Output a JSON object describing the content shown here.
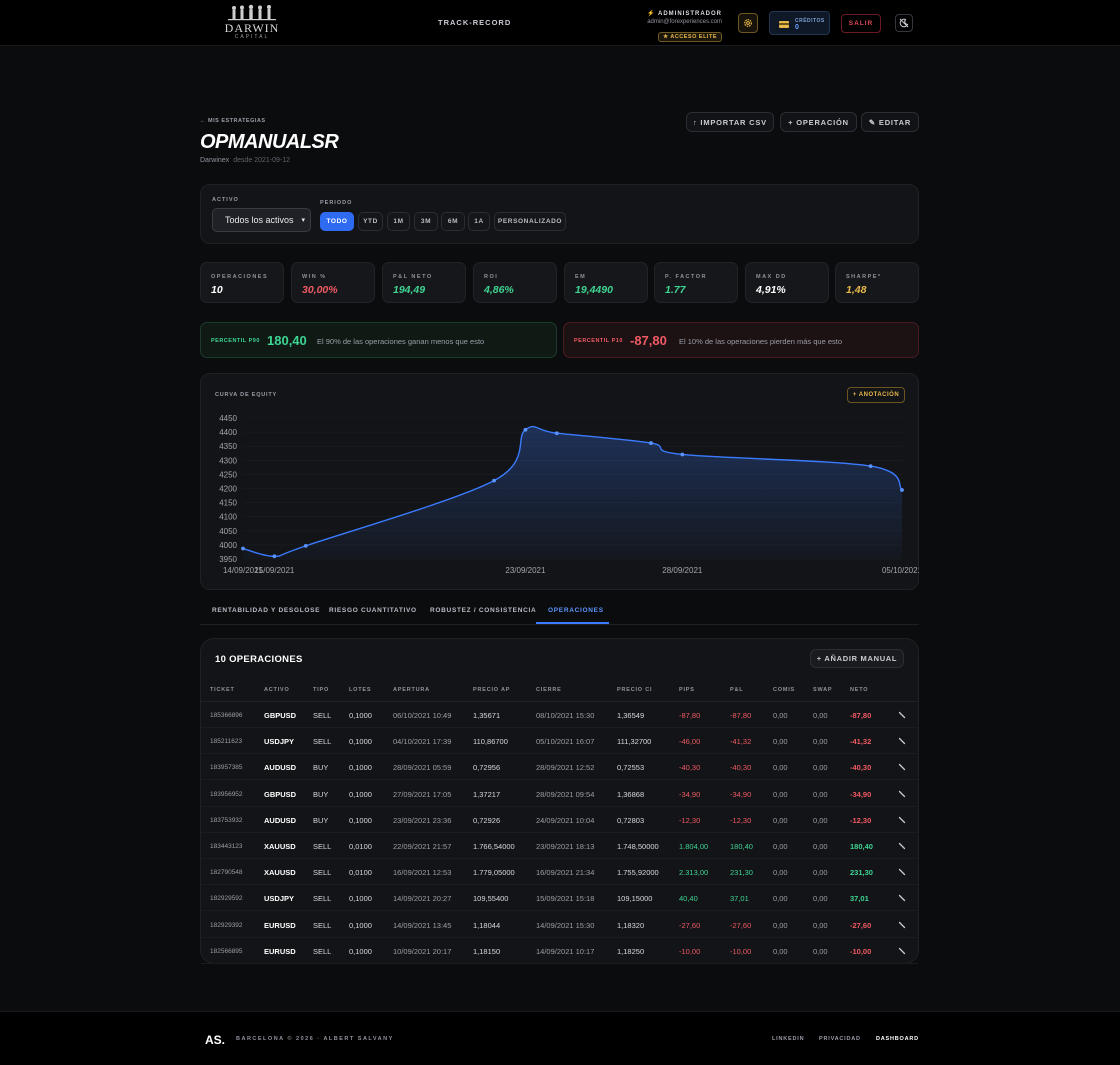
{
  "header": {
    "logo_text": "DARWIN",
    "logo_sub": "CAPITAL",
    "nav_track": "TRACK-RECORD",
    "user_role": "ADMINISTRADOR",
    "user_email": "admin@forexperiences.com",
    "elite_badge": "★ ACCESO ELITE",
    "credits_label": "CRÉDITOS",
    "credits_value": "0",
    "salir": "SALIR",
    "accent": "#e7b84a"
  },
  "page": {
    "back_link": "← MIS ESTRATEGIAS",
    "title": "OPMANUALSR",
    "broker": "Darwinex",
    "since": "desde 2021-09-12",
    "btn_import": "↑ IMPORTAR CSV",
    "btn_operation": "+ OPERACIÓN",
    "btn_edit": "✎ EDITAR"
  },
  "filters": {
    "activo_label": "ACTIVO",
    "activo_value": "Todos los activos",
    "periodo_label": "PERIODO",
    "periods": [
      "TODO",
      "YTD",
      "1M",
      "3M",
      "6M",
      "1A",
      "PERSONALIZADO"
    ],
    "active_period": "TODO"
  },
  "kpis": [
    {
      "label": "OPERACIONES",
      "value": "10",
      "color": "#ffffff"
    },
    {
      "label": "WIN %",
      "value": "30,00%",
      "color": "#ef5a64"
    },
    {
      "label": "P&L NETO",
      "value": "194,49",
      "color": "#3ed492"
    },
    {
      "label": "ROI",
      "value": "4,86%",
      "color": "#3ed492"
    },
    {
      "label": "EM",
      "value": "19,4490",
      "color": "#3ed492"
    },
    {
      "label": "P. FACTOR",
      "value": "1.77",
      "color": "#3ed492"
    },
    {
      "label": "MAX DD",
      "value": "4,91%",
      "color": "#ffffff"
    },
    {
      "label": "SHARPE*",
      "value": "1,48",
      "color": "#e7b84a"
    }
  ],
  "percentiles": {
    "p90_label": "PERCENTIL P90",
    "p90_value": "180,40",
    "p90_desc": "El 90% de las operaciones ganan menos que esto",
    "p10_label": "PERCENTIL P10",
    "p10_value": "-87,80",
    "p10_desc": "El 10% de las operaciones pierden más que esto"
  },
  "chart": {
    "title": "CURVA DE EQUITY",
    "annotation_btn": "+ ANOTACIÓN"
  },
  "chart_data": {
    "type": "area",
    "title": "CURVA DE EQUITY",
    "x": [
      "2021-09-14",
      "2021-09-15",
      "2021-09-16",
      "2021-09-22",
      "2021-09-23",
      "2021-09-24",
      "2021-09-27",
      "2021-09-28",
      "2021-10-04",
      "2021-10-05"
    ],
    "y": [
      3987.2,
      3959.6,
      3996.6,
      4227.9,
      4408.3,
      4396.0,
      4361.1,
      4320.7,
      4279.4,
      4194.5
    ],
    "x_tick_labels": [
      "14/09/2021",
      "15/09/2021",
      "23/09/2021",
      "28/09/2021",
      "05/10/2021"
    ],
    "y_ticks": [
      3950,
      4000,
      4050,
      4100,
      4150,
      4200,
      4250,
      4300,
      4350,
      4400,
      4450
    ],
    "ylim": [
      3950,
      4450
    ],
    "color": "#3a7bff",
    "grid": true
  },
  "tabs": [
    "RENTABILIDAD Y DESGLOSE",
    "RIESGO CUANTITATIVO",
    "ROBUSTEZ / CONSISTENCIA",
    "OPERACIONES"
  ],
  "table": {
    "count_label": "10 OPERACIONES",
    "add_manual": "+ AÑADIR MANUAL",
    "columns": [
      "TICKET",
      "ACTIVO",
      "TIPO",
      "LOTES",
      "APERTURA",
      "PRECIO AP",
      "CIERRE",
      "PRECIO CI",
      "PIPS",
      "P&L",
      "COMIS",
      "SWAP",
      "NETO"
    ],
    "rows": [
      [
        "185366896",
        "GBPUSD",
        "SELL",
        "0,1000",
        "06/10/2021 10:49",
        "1,35671",
        "08/10/2021 15:30",
        "1,36549",
        "-87,80",
        "-87,80",
        "0,00",
        "0,00",
        "-87,80"
      ],
      [
        "185211623",
        "USDJPY",
        "SELL",
        "0,1000",
        "04/10/2021 17:39",
        "110,86700",
        "05/10/2021 16:07",
        "111,32700",
        "-46,00",
        "-41,32",
        "0,00",
        "0,00",
        "-41,32"
      ],
      [
        "183957385",
        "AUDUSD",
        "BUY",
        "0,1000",
        "28/09/2021 05:59",
        "0,72956",
        "28/09/2021 12:52",
        "0,72553",
        "-40,30",
        "-40,30",
        "0,00",
        "0,00",
        "-40,30"
      ],
      [
        "183956952",
        "GBPUSD",
        "BUY",
        "0,1000",
        "27/09/2021 17:05",
        "1,37217",
        "28/09/2021 09:54",
        "1,36868",
        "-34,90",
        "-34,90",
        "0,00",
        "0,00",
        "-34,90"
      ],
      [
        "183753932",
        "AUDUSD",
        "BUY",
        "0,1000",
        "23/09/2021 23:36",
        "0,72926",
        "24/09/2021 10:04",
        "0,72803",
        "-12,30",
        "-12,30",
        "0,00",
        "0,00",
        "-12,30"
      ],
      [
        "183443123",
        "XAUUSD",
        "SELL",
        "0,0100",
        "22/09/2021 21:57",
        "1.766,54000",
        "23/09/2021 18:13",
        "1.748,50000",
        "1.804,00",
        "180,40",
        "0,00",
        "0,00",
        "180,40"
      ],
      [
        "182790548",
        "XAUUSD",
        "SELL",
        "0,0100",
        "16/09/2021 12:53",
        "1.779,05000",
        "16/09/2021 21:34",
        "1.755,92000",
        "2.313,00",
        "231,30",
        "0,00",
        "0,00",
        "231,30"
      ],
      [
        "182929592",
        "USDJPY",
        "SELL",
        "0,1000",
        "14/09/2021 20:27",
        "109,55400",
        "15/09/2021 15:18",
        "109,15000",
        "40,40",
        "37,01",
        "0,00",
        "0,00",
        "37,01"
      ],
      [
        "182929392",
        "EURUSD",
        "SELL",
        "0,1000",
        "14/09/2021 13:45",
        "1,18044",
        "14/09/2021 15:30",
        "1,18320",
        "-27,60",
        "-27,60",
        "0,00",
        "0,00",
        "-27,60"
      ],
      [
        "182566895",
        "EURUSD",
        "SELL",
        "0,1000",
        "10/09/2021 20:17",
        "1,18150",
        "14/09/2021 10:17",
        "1,18250",
        "-10,00",
        "-10,00",
        "0,00",
        "0,00",
        "-10,00"
      ]
    ]
  },
  "footer": {
    "logo": "AS.",
    "copyright": "BARCELONA © 2026 · ALBERT SALVANY",
    "links": [
      "LINKEDIN",
      "PRIVACIDAD",
      "DASHBOARD"
    ]
  }
}
